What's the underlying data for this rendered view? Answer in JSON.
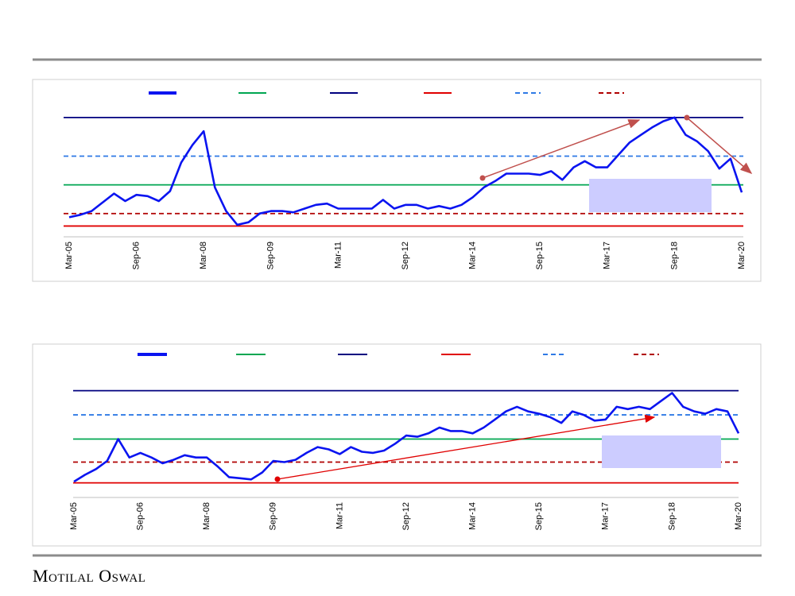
{
  "chart_data": [
    {
      "type": "line",
      "categories": [
        "Mar-05",
        null,
        null,
        null,
        null,
        null,
        "Sep-06",
        null,
        null,
        null,
        null,
        null,
        "Mar-08",
        null,
        null,
        null,
        null,
        null,
        "Sep-09",
        null,
        null,
        null,
        null,
        null,
        "Mar-11",
        null,
        null,
        null,
        null,
        null,
        "Sep-12",
        null,
        null,
        null,
        null,
        null,
        "Mar-14",
        null,
        null,
        null,
        null,
        null,
        "Sep-15",
        null,
        null,
        null,
        null,
        null,
        "Mar-17",
        null,
        null,
        null,
        null,
        null,
        "Sep-18",
        null,
        null,
        null,
        null,
        null,
        "Mar-20"
      ],
      "ylim": [
        0,
        100
      ],
      "series": [
        {
          "color": "#0a14f0",
          "values": [
            15,
            17,
            20,
            27,
            34,
            28,
            33,
            32,
            28,
            36,
            59,
            73,
            84,
            39,
            20,
            9,
            11,
            18,
            20,
            20,
            19,
            22,
            25,
            26,
            22,
            22,
            22,
            22,
            29,
            22,
            25,
            25,
            22,
            24,
            22,
            25,
            31,
            39,
            44,
            50,
            50,
            50,
            49,
            52,
            45,
            55,
            60,
            55,
            55,
            65,
            75,
            81,
            87,
            92,
            95,
            81,
            76,
            68,
            54,
            62,
            35
          ]
        }
      ],
      "lines": [
        {
          "color": "#00a651",
          "value": 41,
          "dashed": false
        },
        {
          "color": "#00007f",
          "value": 95,
          "dashed": false
        },
        {
          "color": "#e00000",
          "value": 8,
          "dashed": false
        },
        {
          "color": "#2f7ae5",
          "value": 64,
          "dashed": true
        },
        {
          "color": "#b00000",
          "value": 18,
          "dashed": true
        }
      ]
    },
    {
      "type": "line",
      "categories": [
        "Mar-05",
        null,
        null,
        null,
        null,
        null,
        "Sep-06",
        null,
        null,
        null,
        null,
        null,
        "Mar-08",
        null,
        null,
        null,
        null,
        null,
        "Sep-09",
        null,
        null,
        null,
        null,
        null,
        "Mar-11",
        null,
        null,
        null,
        null,
        null,
        "Sep-12",
        null,
        null,
        null,
        null,
        null,
        "Mar-14",
        null,
        null,
        null,
        null,
        null,
        "Sep-15",
        null,
        null,
        null,
        null,
        null,
        "Mar-17",
        null,
        null,
        null,
        null,
        null,
        "Sep-18",
        null,
        null,
        null,
        null,
        null,
        "Mar-20"
      ],
      "ylim": [
        0,
        100
      ],
      "series": [
        {
          "color": "#0a14f0",
          "values": [
            13,
            19,
            24,
            31,
            50,
            34,
            38,
            34,
            29,
            32,
            36,
            34,
            34,
            26,
            17,
            16,
            15,
            21,
            31,
            30,
            32,
            38,
            43,
            41,
            37,
            43,
            39,
            38,
            40,
            46,
            53,
            52,
            55,
            60,
            57,
            57,
            55,
            60,
            67,
            74,
            78,
            74,
            72,
            69,
            64,
            74,
            71,
            66,
            67,
            78,
            76,
            78,
            76,
            83,
            90,
            78,
            74,
            72,
            76,
            74,
            55
          ]
        }
      ],
      "lines": [
        {
          "color": "#00a651",
          "value": 50,
          "dashed": false
        },
        {
          "color": "#00007f",
          "value": 92,
          "dashed": false
        },
        {
          "color": "#e00000",
          "value": 12,
          "dashed": false
        },
        {
          "color": "#2f7ae5",
          "value": 71,
          "dashed": true
        },
        {
          "color": "#b00000",
          "value": 30,
          "dashed": true
        }
      ]
    }
  ],
  "footer": "Motilal Oswal"
}
